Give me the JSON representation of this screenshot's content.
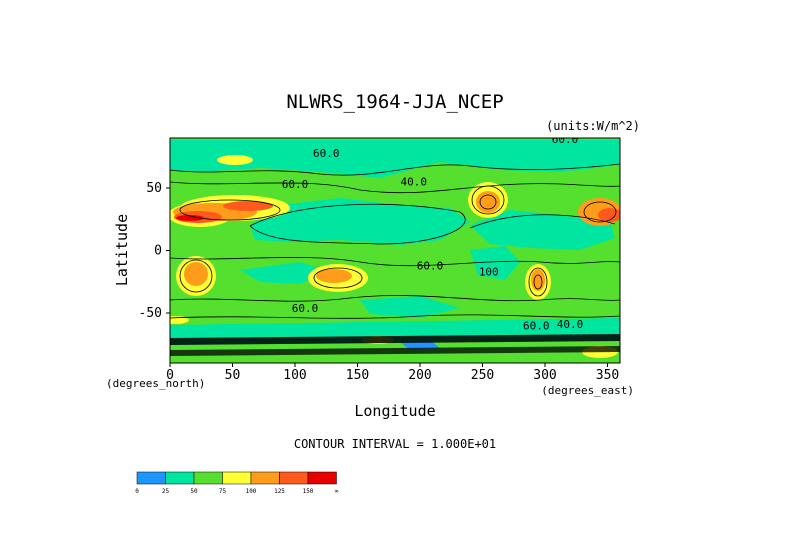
{
  "chart_data": {
    "type": "heatmap",
    "title": "NLWRS_1964-JJA_NCEP",
    "units_label": "(units:W/m^2)",
    "xlabel": "Longitude",
    "ylabel": "Latitude",
    "x_unit_label": "(degrees_east)",
    "y_unit_label": "(degrees_north)",
    "xlim": [
      0,
      360
    ],
    "ylim": [
      -90,
      90
    ],
    "x_ticks": [
      "0",
      "50",
      "100",
      "150",
      "200",
      "250",
      "300",
      "350"
    ],
    "x_tick_values": [
      0,
      50,
      100,
      150,
      200,
      250,
      300,
      350
    ],
    "y_ticks": [
      "50",
      "0",
      "-50"
    ],
    "y_tick_values": [
      50,
      0,
      -50
    ],
    "contour_interval_label": "CONTOUR INTERVAL = 1.000E+01",
    "contour_labels": [
      {
        "text": "60.0",
        "lon": 125,
        "lat": 75
      },
      {
        "text": "60.0",
        "lon": 100,
        "lat": 50
      },
      {
        "text": "40.0",
        "lon": 195,
        "lat": 52
      },
      {
        "text": "60.0",
        "lon": 208,
        "lat": -15
      },
      {
        "text": "60.0",
        "lon": 108,
        "lat": -49
      },
      {
        "text": "100",
        "lon": 255,
        "lat": -20
      },
      {
        "text": "60.0",
        "lon": 293,
        "lat": -63
      },
      {
        "text": "40.0",
        "lon": 320,
        "lat": -62
      },
      {
        "text": "60.0",
        "lon": 316,
        "lat": 86
      }
    ],
    "colorbar": {
      "colors": [
        "#1e96ff",
        "#00e6a0",
        "#55e030",
        "#ffff33",
        "#ff9d1b",
        "#ff5a1e",
        "#e80000"
      ],
      "labels": [
        "0",
        "25",
        "50",
        "75",
        "100",
        "125",
        "150",
        "∞"
      ]
    }
  }
}
